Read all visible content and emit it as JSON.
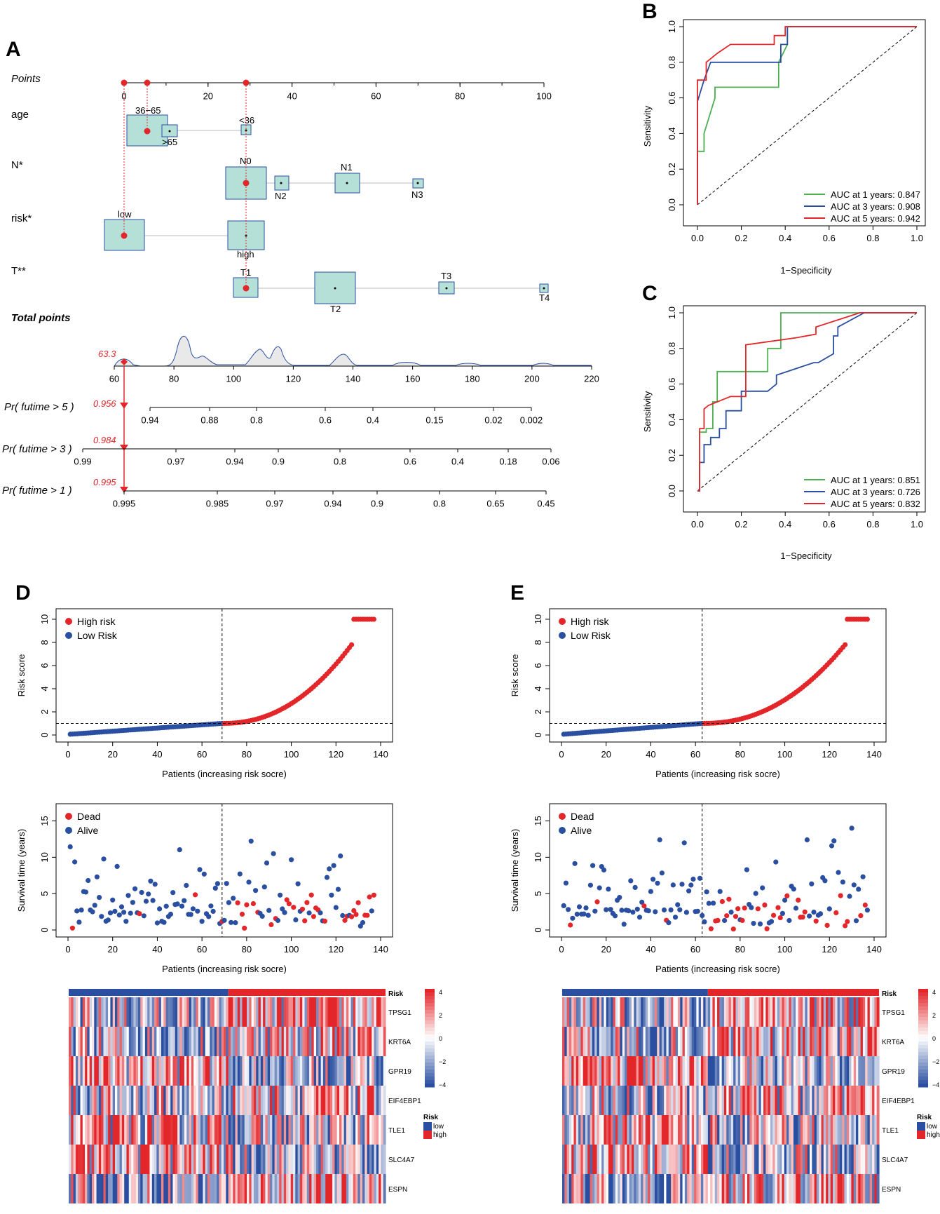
{
  "panel_labels": {
    "a": "A",
    "b": "B",
    "c": "C",
    "d": "D",
    "e": "E"
  },
  "colors": {
    "red": "#e3262a",
    "blue": "#2a4fa0",
    "green": "#4caf50",
    "teal": "#b5e0d8",
    "box_border": "#2a4fa0"
  },
  "nomogram": {
    "rows": {
      "points": "Points",
      "age": "age",
      "n": "N*",
      "risk": "risk*",
      "t": "T**",
      "total": "Total points",
      "p5": "Pr( futime > 5 )",
      "p3": "Pr( futime > 3 )",
      "p1": "Pr( futime > 1 )"
    },
    "points_ticks": [
      "0",
      "20",
      "40",
      "60",
      "80",
      "100"
    ],
    "age_labels": {
      "a3665": "36−65",
      "a65": ">65",
      "a36": "<36"
    },
    "n_labels": {
      "n0": "N0",
      "n1": "N1",
      "n2": "N2",
      "n3": "N3"
    },
    "risk_labels": {
      "low": "low",
      "high": "high"
    },
    "t_labels": {
      "t1": "T1",
      "t2": "T2",
      "t3": "T3",
      "t4": "T4"
    },
    "total_ticks": [
      "60",
      "80",
      "100",
      "120",
      "140",
      "160",
      "180",
      "200",
      "220"
    ],
    "total_value": "63.3",
    "p5_ticks": [
      "0.94",
      "0.88",
      "0.8",
      "0.6",
      "0.4",
      "0.15",
      "0.02",
      "0.002"
    ],
    "p5_value": "0.956",
    "p3_ticks": [
      "0.99",
      "0.97",
      "0.94",
      "0.9",
      "0.8",
      "0.6",
      "0.4",
      "0.18",
      "0.06"
    ],
    "p3_value": "0.984",
    "p1_ticks": [
      "0.995",
      "0.985",
      "0.97",
      "0.94",
      "0.9",
      "0.8",
      "0.65",
      "0.45"
    ],
    "p1_value": "0.995"
  },
  "chart_data": [
    {
      "panel": "B",
      "type": "line",
      "xlabel": "1−Specificity",
      "ylabel": "Sensitivity",
      "xlim": [
        0,
        1
      ],
      "ylim": [
        0,
        1
      ],
      "ticks": [
        "0.0",
        "0.2",
        "0.4",
        "0.6",
        "0.8",
        "1.0"
      ],
      "series": [
        {
          "name": "AUC at 1 years: 0.847",
          "color": "#4caf50",
          "x": [
            0,
            0,
            0.03,
            0.03,
            0.08,
            0.08,
            0.37,
            0.37,
            0.41,
            0.41,
            1
          ],
          "y": [
            0,
            0.3,
            0.3,
            0.4,
            0.6,
            0.66,
            0.66,
            0.8,
            0.9,
            1,
            1
          ]
        },
        {
          "name": "AUC at 3 years: 0.908",
          "color": "#2a4fa0",
          "x": [
            0,
            0,
            0.03,
            0.06,
            0.06,
            0.38,
            0.38,
            0.41,
            0.41,
            1
          ],
          "y": [
            0,
            0.58,
            0.7,
            0.8,
            0.8,
            0.8,
            0.9,
            0.9,
            1,
            1
          ]
        },
        {
          "name": "AUC at 5 years: 0.942",
          "color": "#e3262a",
          "x": [
            0,
            0,
            0.04,
            0.04,
            0.09,
            0.15,
            0.35,
            0.35,
            0.4,
            0.4,
            1
          ],
          "y": [
            0,
            0.7,
            0.7,
            0.8,
            0.85,
            0.9,
            0.9,
            0.95,
            0.95,
            1,
            1
          ]
        }
      ]
    },
    {
      "panel": "C",
      "type": "line",
      "xlabel": "1−Specificity",
      "ylabel": "Sensitivity",
      "xlim": [
        0,
        1
      ],
      "ylim": [
        0,
        1
      ],
      "ticks": [
        "0.0",
        "0.2",
        "0.4",
        "0.6",
        "0.8",
        "1.0"
      ],
      "series": [
        {
          "name": "AUC at 1 years: 0.851",
          "color": "#4caf50",
          "x": [
            0,
            0.01,
            0.01,
            0.04,
            0.04,
            0.07,
            0.07,
            0.09,
            0.09,
            0.32,
            0.32,
            0.38,
            0.38,
            1
          ],
          "y": [
            0,
            0,
            0.33,
            0.33,
            0.35,
            0.35,
            0.5,
            0.5,
            0.67,
            0.67,
            0.8,
            0.8,
            1,
            1
          ]
        },
        {
          "name": "AUC at 3 years: 0.726",
          "color": "#2a4fa0",
          "x": [
            0,
            0.01,
            0.01,
            0.03,
            0.03,
            0.06,
            0.06,
            0.1,
            0.1,
            0.13,
            0.13,
            0.2,
            0.2,
            0.26,
            0.32,
            0.36,
            0.36,
            0.53,
            0.55,
            0.62,
            0.62,
            0.64,
            0.64,
            0.76,
            1
          ],
          "y": [
            0,
            0,
            0.16,
            0.16,
            0.26,
            0.26,
            0.3,
            0.3,
            0.35,
            0.35,
            0.45,
            0.45,
            0.56,
            0.56,
            0.56,
            0.6,
            0.65,
            0.72,
            0.72,
            0.77,
            0.87,
            0.87,
            0.92,
            1,
            1
          ]
        },
        {
          "name": "AUC at 5 years: 0.832",
          "color": "#e3262a",
          "x": [
            0,
            0.01,
            0.01,
            0.03,
            0.03,
            0.05,
            0.15,
            0.22,
            0.22,
            0.45,
            0.54,
            0.54,
            0.74,
            1
          ],
          "y": [
            0,
            0,
            0.35,
            0.35,
            0.46,
            0.48,
            0.53,
            0.53,
            0.82,
            0.86,
            0.88,
            0.92,
            1,
            1
          ]
        }
      ]
    },
    {
      "panel": "D1",
      "type": "scatter",
      "xlabel": "Patients (increasing risk socre)",
      "ylabel": "Risk score",
      "xlim": [
        0,
        140
      ],
      "ylim": [
        0,
        10
      ],
      "ticks_x": [
        "0",
        "20",
        "40",
        "60",
        "80",
        "100",
        "120",
        "140"
      ],
      "ticks_y": [
        "0",
        "2",
        "4",
        "6",
        "8",
        "10"
      ],
      "n": 137,
      "cutoff_index": 69,
      "cutoff_value": 1.0,
      "legend": [
        "High risk",
        "Low Risk"
      ]
    },
    {
      "panel": "D2",
      "type": "scatter",
      "xlabel": "Patients (increasing risk socre)",
      "ylabel": "Survival time (years)",
      "xlim": [
        0,
        140
      ],
      "ylim": [
        0,
        15
      ],
      "ticks_x": [
        "0",
        "20",
        "40",
        "60",
        "80",
        "100",
        "120",
        "140"
      ],
      "ticks_y": [
        "0",
        "5",
        "10",
        "15"
      ],
      "cutoff_index": 69,
      "legend": [
        "Dead",
        "Alive"
      ]
    },
    {
      "panel": "E1",
      "type": "scatter",
      "xlabel": "Patients (increasing risk socre)",
      "ylabel": "Risk score",
      "xlim": [
        0,
        140
      ],
      "ylim": [
        0,
        10
      ],
      "ticks_x": [
        "0",
        "20",
        "40",
        "60",
        "80",
        "100",
        "120",
        "140"
      ],
      "ticks_y": [
        "0",
        "2",
        "4",
        "6",
        "8",
        "10"
      ],
      "n": 137,
      "cutoff_index": 63,
      "cutoff_value": 1.0,
      "legend": [
        "High risk",
        "Low Risk"
      ]
    },
    {
      "panel": "E2",
      "type": "scatter",
      "xlabel": "Patients (increasing risk socre)",
      "ylabel": "Survival time (years)",
      "xlim": [
        0,
        140
      ],
      "ylim": [
        0,
        15
      ],
      "ticks_x": [
        "0",
        "20",
        "40",
        "60",
        "80",
        "100",
        "120",
        "140"
      ],
      "ticks_y": [
        "0",
        "5",
        "10",
        "15"
      ],
      "cutoff_index": 63,
      "legend": [
        "Dead",
        "Alive"
      ]
    },
    {
      "panel": "D3",
      "type": "heatmap",
      "genes": [
        "TPSG1",
        "KRT6A",
        "GPR19",
        "EIF4EBP1",
        "TLE1",
        "SLC4A7",
        "ESPN"
      ],
      "annotation": "Risk",
      "scale_ticks": [
        "4",
        "2",
        "0",
        "−2",
        "−4"
      ],
      "legend_title": "Risk",
      "legend_items": [
        "low",
        "high"
      ],
      "n": 137,
      "cutoff_index": 69
    },
    {
      "panel": "E3",
      "type": "heatmap",
      "genes": [
        "TPSG1",
        "KRT6A",
        "GPR19",
        "EIF4EBP1",
        "TLE1",
        "SLC4A7",
        "ESPN"
      ],
      "annotation": "Risk",
      "scale_ticks": [
        "4",
        "2",
        "0",
        "−2",
        "−4"
      ],
      "legend_title": "Risk",
      "legend_items": [
        "low",
        "high"
      ],
      "n": 137,
      "cutoff_index": 63
    }
  ]
}
